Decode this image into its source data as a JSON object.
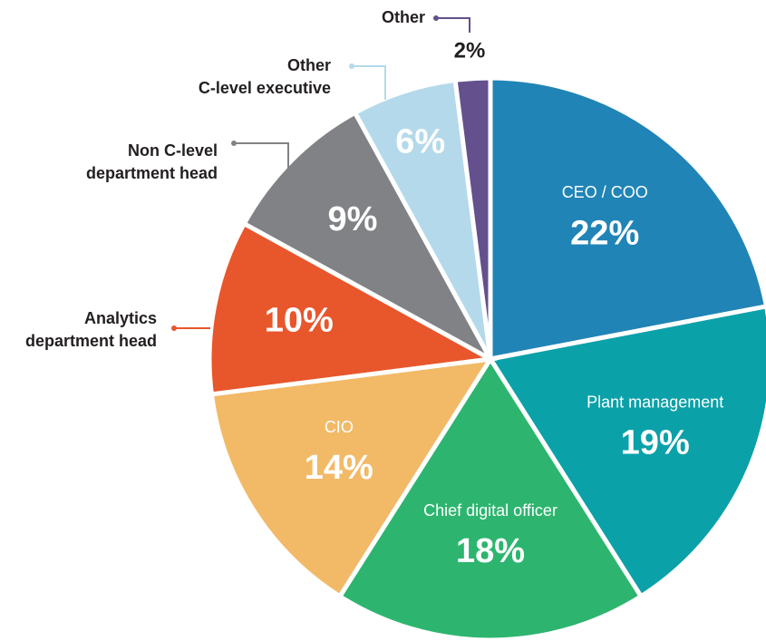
{
  "chart_data": {
    "type": "pie",
    "categories": [
      "CEO / COO",
      "Plant management",
      "Chief digital officer",
      "CIO",
      "Analytics department head",
      "Non C-level department head",
      "Other C-level executive",
      "Other"
    ],
    "values": [
      22,
      19,
      18,
      14,
      10,
      9,
      6,
      2
    ],
    "value_labels": [
      "22%",
      "19%",
      "18%",
      "14%",
      "10%",
      "9%",
      "6%",
      "2%"
    ],
    "colors": [
      "#2184b6",
      "#0ba1a9",
      "#2db56f",
      "#f2b967",
      "#e8562c",
      "#808285",
      "#b4d9ea",
      "#63508c"
    ]
  }
}
